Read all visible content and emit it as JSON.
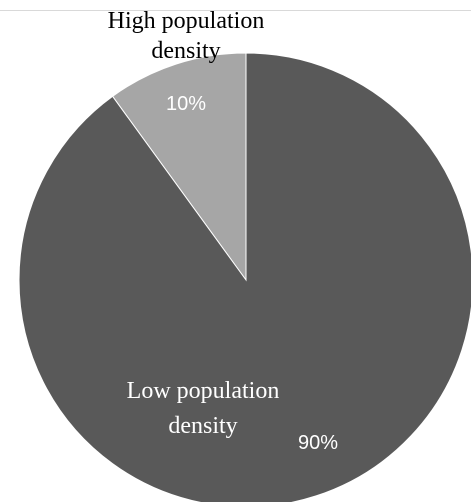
{
  "chart_data": {
    "type": "pie",
    "title": "",
    "slices": [
      {
        "label_lines": [
          "High population",
          "density"
        ],
        "value": 10,
        "value_label": "10%",
        "color": "#a6a6a6",
        "label_color": "#000000"
      },
      {
        "label_lines": [
          "Low population",
          "density"
        ],
        "value": 90,
        "value_label": "90%",
        "color": "#595959",
        "label_color": "#ffffff"
      }
    ],
    "start": "12 o'clock",
    "direction": "counterclockwise"
  }
}
